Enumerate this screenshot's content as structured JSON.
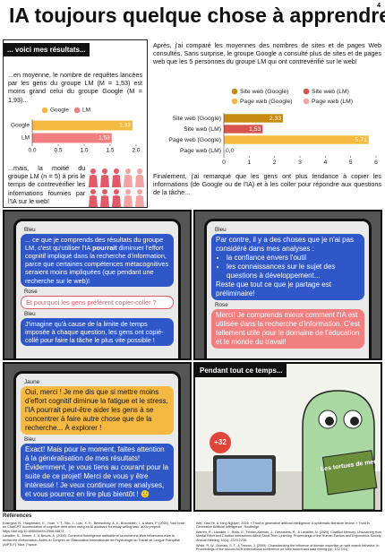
{
  "page_number": "4",
  "title": "IA toujours quelque chose à apprendre",
  "results": {
    "heading": "... voici mes résultats...",
    "text1": "...en moyenne, le nombre de requêtes lancées par les gens du groupe LM (M = 1,53) est moins grand celui du groupe Google (M = 1,93)...",
    "text2": "...mais, la moitié du groupe LM (n = 5) à pris le temps de contrevérifier les informations fournies par l'IA sur le web!"
  },
  "right": {
    "text1": "Après, j'ai comparé les moyennes des nombres de sites et de pages Web consultés. Sans surprise, le groupe Google a consulté plus de sites et de pages web que les 5 personnes du groupe LM qui ont contrevérifié sur le web!",
    "text2": "Finalement, j'ai remarqué que les gens ont plus tendance à copier les informations (de Google ou de l'IA) et à les coller pour répondre aux questions de la tâche..."
  },
  "chart_data": [
    {
      "type": "hbar",
      "categories": [
        "Google",
        "LM"
      ],
      "values": [
        1.93,
        1.53
      ],
      "value_labels": [
        "1,93",
        "1,53"
      ],
      "colors": [
        "#f5b942",
        "#f27f7f"
      ],
      "xlim": [
        0,
        2
      ],
      "xticks": [
        {
          "value": 0,
          "label": "0.0"
        },
        {
          "value": 0.5,
          "label": "0.5"
        },
        {
          "value": 1,
          "label": "1.0"
        },
        {
          "value": 1.5,
          "label": "1.5"
        },
        {
          "value": 2,
          "label": "2.0"
        }
      ],
      "legend": "top"
    },
    {
      "type": "hbar",
      "categories": [
        "Site web (Google)",
        "Site web (LM)",
        "Page web (Google)",
        "Page web (LM)"
      ],
      "values": [
        2.33,
        1.53,
        5.71,
        0
      ],
      "value_labels": [
        "2,33",
        "1,53",
        "5,71",
        "0,0"
      ],
      "colors": [
        "#c98a14",
        "#d9534f",
        "#f5b942",
        "#f4a3a3"
      ],
      "xlim": [
        0,
        6
      ],
      "xticks": [
        0,
        1,
        2,
        3,
        4,
        5,
        6
      ],
      "legend": "top"
    }
  ],
  "panel1": {
    "m0": {
      "speaker": "Bleu",
      "text": "... ce que je comprends des résultats du groupe LM, c'est qu'utiliser l'IA ",
      "bold": "pourrait",
      "text_end": " diminuer l'effort cognitif impliqué dans la recherche d'information, parce que certaines compétences métacognitives seraient moins impliquées (que pendant une recherche sur le web)!"
    },
    "m1": {
      "speaker": "Rose",
      "text": "Et pourquoi les gens préfèrent copier-coller ?"
    },
    "m2": {
      "speaker": "Bleu",
      "text": "J'imagine qu'à cause de la limite de temps imposée à chaque question, les gens ont copié-collé pour faire la tâche le plus vite possible !"
    }
  },
  "panel2": {
    "m0": {
      "speaker": "Bleu",
      "text": "Par contre, il y a des choses que je n'ai pas considéré dans mes analyses :",
      "bullets": [
        "la confiance envers l'outil",
        "les connaissances sur le sujet des questions à développement..."
      ],
      "closing": "Reste que tout ce que je partage est préliminaire!"
    },
    "m1": {
      "speaker": "Rose",
      "text": "Merci! Je comprends mieux comment l'IA est utilisée dans la recherche d'information. C'est tellement utile pour le domaine de l'éducation et le monde du travail!"
    }
  },
  "panel3": {
    "m0": {
      "speaker": "Jaune",
      "text": "Oui, merci ! Je me dis que si mettre moins d'effort cognitif diminue la fatigue et le stress, l'IA pourrait peut-être aider les gens à se concentrer à faire autre chose que de la recherche... À explorer !"
    },
    "m1": {
      "speaker": "Bleu",
      "text": "Exact! Mais pour le moment, faites attention à la généralisation de mes résultats! Évidemment, je vous tiens au courant pour la suite de ce projet! Merci de vous y être intéressé ! Je veux continuer mes analyses, et vous pourrez en lire plus bientôt ! 🙂"
    }
  },
  "panel4": {
    "caption": "Pendant tout ce temps...",
    "badge": "+32",
    "book": "Les tortues de mer"
  },
  "references": {
    "heading": "Références",
    "items": [
      "Kosmyna, N., Hauptmann, E., Yuan, Y. T., Situ, J., Liao, X. H., Beresnitzky, A. V., Braunstein, I., & Maes, P. (2025). Your brain on ChatGPT: Accumulation of cognitive debt when using an AI assistant for essay writing task. arXiv preprint. https://doi.org/10.48550/arXiv.2506.08872",
      "Lavallée, S., Jodoin, J., & Benzis, A. (2024). Comment l'intelligence artificielle et la recherche Web influencent-elles la recherche d'information. Actes du Congrès de l'Association internationale de Psychologie du Travail de Langue Française (AIPTLF), Nice, France.",
      "Wei, Xiao Ye, & Yang Nguyen. 2025. « Trust in generative artificial intelligence: A systematic literature review. » Trust in Generative Artificial Intelligence. Routledge.",
      "Warren, R., Lavallée, I., Rolls, G., Fenton-Keenan, J., Desrosiers, R., & Lavallée, N. (2020). ChatBot Memory: Uncovering How Mental Effort and Chatbot Interactions Affect Short-Term Learning. Proceedings of the Human Factors and Ergonomics Society Annual Meeting, 64(1), 2229-2235.",
      "White, R. W., Dumais, S. T., & Teevan, J. (2009). Characterizing the influence of domain expertise on web search behavior. In Proceedings of the second ACM international conference on Web search and data mining (pp. 132-141)."
    ]
  }
}
